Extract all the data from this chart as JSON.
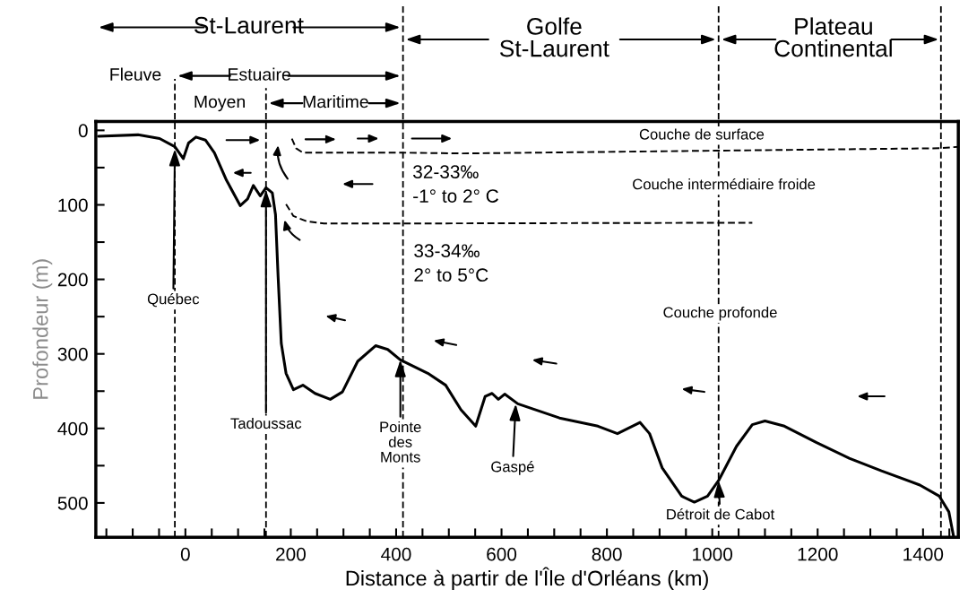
{
  "chart_data": {
    "type": "line",
    "xlabel": "Distance à partir de l'Île d'Orléans (km)",
    "ylabel": "Profondeur (m)",
    "xlim": [
      -170,
      1467
    ],
    "ylim": [
      546,
      -12
    ],
    "xticks": [
      {
        "value": -150,
        "label": null
      },
      {
        "value": -100,
        "label": null
      },
      {
        "value": -50,
        "label": null
      },
      0,
      {
        "value": 50,
        "label": null
      },
      {
        "value": 100,
        "label": null
      },
      {
        "value": 150,
        "label": null
      },
      200,
      {
        "value": 250,
        "label": null
      },
      {
        "value": 300,
        "label": null
      },
      {
        "value": 350,
        "label": null
      },
      400,
      {
        "value": 450,
        "label": null
      },
      {
        "value": 500,
        "label": null
      },
      {
        "value": 550,
        "label": null
      },
      600,
      {
        "value": 650,
        "label": null
      },
      {
        "value": 700,
        "label": null
      },
      {
        "value": 750,
        "label": null
      },
      800,
      {
        "value": 850,
        "label": null
      },
      {
        "value": 900,
        "label": null
      },
      {
        "value": 950,
        "label": null
      },
      1000,
      {
        "value": 1050,
        "label": null
      },
      {
        "value": 1100,
        "label": null
      },
      {
        "value": 1150,
        "label": null
      },
      1200,
      {
        "value": 1250,
        "label": null
      },
      {
        "value": 1300,
        "label": null
      },
      {
        "value": 1350,
        "label": null
      },
      1400,
      {
        "value": 1450,
        "label": null
      }
    ],
    "yticks": [
      0,
      {
        "value": 50,
        "label": null
      },
      100,
      {
        "value": 150,
        "label": null
      },
      200,
      {
        "value": 250,
        "label": null
      },
      300,
      {
        "value": 350,
        "label": null
      },
      400,
      {
        "value": 450,
        "label": null
      },
      500
    ],
    "grid": false,
    "legend": false,
    "marker": "none",
    "series": [
      {
        "color": "#000000",
        "line_style": "solid",
        "x": [
          -165,
          -90,
          -49,
          -20,
          -4,
          6,
          20,
          38,
          55,
          78,
          104,
          118,
          129,
          142,
          153,
          165,
          171,
          176,
          182,
          191,
          205,
          223,
          246,
          275,
          298,
          327,
          361,
          384,
          408,
          460,
          494,
          523,
          551,
          569,
          582,
          594,
          606,
          631,
          710,
          783,
          820,
          863,
          881,
          905,
          942,
          966,
          991,
          1012,
          1046,
          1076,
          1100,
          1137,
          1198,
          1260,
          1321,
          1394,
          1431,
          1449,
          1458
        ],
        "values": [
          8,
          6,
          11,
          22,
          38,
          17,
          9,
          13,
          30,
          67,
          101,
          92,
          74,
          88,
          77,
          84,
          113,
          197,
          286,
          326,
          348,
          342,
          353,
          361,
          351,
          310,
          289,
          294,
          308,
          326,
          342,
          375,
          397,
          357,
          353,
          361,
          354,
          367,
          386,
          397,
          407,
          392,
          407,
          453,
          491,
          499,
          491,
          470,
          424,
          395,
          390,
          397,
          419,
          440,
          457,
          476,
          491,
          512,
          545
        ]
      },
      {
        "color": "#000000",
        "line_style": "dashed",
        "x": [
          202,
          210,
          223,
          413,
          527,
          1432,
          1467
        ],
        "values": [
          11,
          24,
          30,
          30,
          31,
          24,
          22
        ]
      },
      {
        "color": "#000000",
        "line_style": "dashed",
        "x": [
          191,
          205,
          230,
          263,
          413,
          1076
        ],
        "values": [
          99,
          115,
          122,
          125,
          125,
          124
        ]
      }
    ],
    "ref_lines": [
      {
        "axis": "x",
        "value": -20,
        "color": "#000000",
        "line_style": "dashed"
      },
      {
        "axis": "x",
        "value": 153,
        "color": "#000000",
        "line_style": "dashed"
      },
      {
        "axis": "x",
        "value": 413,
        "color": "#000000",
        "line_style": "dashed"
      },
      {
        "axis": "x",
        "value": 1012,
        "color": "#000000",
        "line_style": "dashed"
      },
      {
        "axis": "x",
        "value": 1434,
        "color": "#000000",
        "line_style": "dashed"
      }
    ],
    "annotations": [
      {
        "text": "Québec",
        "x": -20,
        "y": 25
      },
      {
        "text": "Tadoussac",
        "x": 153,
        "y": 80
      },
      {
        "text": "Pointe\ndes\nMonts",
        "x": 408,
        "y": 308
      },
      {
        "text": "Gaspé",
        "x": 627,
        "y": 367
      },
      {
        "text": "Détroit de Cabot",
        "x": 1012,
        "y": 470
      },
      "Couche de surface",
      "Couche intermédiaire froide",
      "Couche profonde",
      "32-33‰\n-1° to 2° C",
      "33-34‰\n2° to 5°C",
      "St-Laurent",
      "Golfe\nSt-Laurent",
      "Plateau\nContinental",
      "Fleuve",
      "Estuaire",
      "Moyen",
      "Maritime"
    ]
  }
}
